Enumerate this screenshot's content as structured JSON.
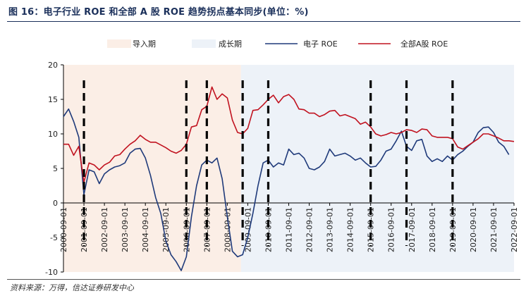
{
  "header": {
    "title": "图 16：电子行业 ROE 和全部 A 股 ROE 趋势拐点基本同步(单位：%)"
  },
  "footer": {
    "source": "资料来源：万得，信达证券研发中心"
  },
  "colors": {
    "electronics": "#1f3a7a",
    "allA": "#c1121f",
    "guide_period": "#fbeee6",
    "growth_period": "#edf2f8",
    "marker": "#000000",
    "title": "#1a2f5a"
  },
  "chart_data": {
    "type": "line",
    "legend": [
      "导入期",
      "成长期",
      "电子 ROE",
      "全部A股 ROE"
    ],
    "ylim": [
      -10,
      20
    ],
    "yticks": [
      -10,
      -5,
      0,
      5,
      10,
      15,
      20
    ],
    "xlim": [
      "2000-09-01",
      "2022-09-01"
    ],
    "xticks": [
      "2000-09-01",
      "2001-09-01",
      "2002-09-01",
      "2003-09-01",
      "2004-09-01",
      "2005-09-01",
      "2006-09-01",
      "2007-09-01",
      "2008-09-01",
      "2009-09-01",
      "2010-09-01",
      "2011-09-01",
      "2012-09-01",
      "2013-09-01",
      "2014-09-01",
      "2015-09-01",
      "2016-09-01",
      "2017-09-01",
      "2018-09-01",
      "2019-09-01",
      "2020-09-01",
      "2021-09-01",
      "2022-09-01"
    ],
    "bands": [
      {
        "name": "导入期",
        "start": "2000-09-01",
        "end": "2009-05-01"
      },
      {
        "name": "成长期",
        "start": "2009-05-01",
        "end": "2022-09-01"
      }
    ],
    "markers": [
      "2001-09-01",
      "2006-09-01",
      "2007-09-01",
      "2009-06-01",
      "2010-09-01",
      "2015-09-01",
      "2017-06-01",
      "2019-09-01"
    ],
    "series": [
      {
        "name": "电子 ROE",
        "points": [
          [
            "2000-09-01",
            12.5
          ],
          [
            "2000-12-01",
            13.6
          ],
          [
            "2001-03-01",
            11.8
          ],
          [
            "2001-06-01",
            9.5
          ],
          [
            "2001-09-01",
            1.2
          ],
          [
            "2001-12-01",
            4.8
          ],
          [
            "2002-03-01",
            4.5
          ],
          [
            "2002-06-01",
            2.8
          ],
          [
            "2002-09-01",
            4.2
          ],
          [
            "2002-12-01",
            4.8
          ],
          [
            "2003-03-01",
            5.2
          ],
          [
            "2003-06-01",
            5.4
          ],
          [
            "2003-09-01",
            5.8
          ],
          [
            "2003-12-01",
            7.2
          ],
          [
            "2004-03-01",
            7.8
          ],
          [
            "2004-06-01",
            7.9
          ],
          [
            "2004-09-01",
            6.5
          ],
          [
            "2004-12-01",
            4.0
          ],
          [
            "2005-03-01",
            0.8
          ],
          [
            "2005-06-01",
            -1.5
          ],
          [
            "2005-09-01",
            -5.5
          ],
          [
            "2005-12-01",
            -7.5
          ],
          [
            "2006-03-01",
            -8.5
          ],
          [
            "2006-06-01",
            -9.8
          ],
          [
            "2006-09-01",
            -7.8
          ],
          [
            "2006-12-01",
            -2.0
          ],
          [
            "2007-03-01",
            2.5
          ],
          [
            "2007-06-01",
            5.5
          ],
          [
            "2007-09-01",
            6.2
          ],
          [
            "2007-12-01",
            5.8
          ],
          [
            "2008-03-01",
            6.5
          ],
          [
            "2008-06-01",
            3.5
          ],
          [
            "2008-09-01",
            -2.0
          ],
          [
            "2008-12-01",
            -7.0
          ],
          [
            "2009-03-01",
            -7.8
          ],
          [
            "2009-06-01",
            -7.5
          ],
          [
            "2009-09-01",
            -5.0
          ],
          [
            "2009-12-01",
            -1.5
          ],
          [
            "2010-03-01",
            2.5
          ],
          [
            "2010-06-01",
            5.8
          ],
          [
            "2010-09-01",
            6.2
          ],
          [
            "2010-12-01",
            5.2
          ],
          [
            "2011-03-01",
            5.8
          ],
          [
            "2011-06-01",
            5.5
          ],
          [
            "2011-09-01",
            7.8
          ],
          [
            "2011-12-01",
            7.0
          ],
          [
            "2012-03-01",
            7.2
          ],
          [
            "2012-06-01",
            6.5
          ],
          [
            "2012-09-01",
            5.0
          ],
          [
            "2012-12-01",
            4.8
          ],
          [
            "2013-03-01",
            5.2
          ],
          [
            "2013-06-01",
            6.0
          ],
          [
            "2013-09-01",
            7.8
          ],
          [
            "2013-12-01",
            6.8
          ],
          [
            "2014-03-01",
            7.0
          ],
          [
            "2014-06-01",
            7.2
          ],
          [
            "2014-09-01",
            6.8
          ],
          [
            "2014-12-01",
            6.2
          ],
          [
            "2015-03-01",
            6.5
          ],
          [
            "2015-06-01",
            5.8
          ],
          [
            "2015-09-01",
            5.2
          ],
          [
            "2015-12-01",
            5.3
          ],
          [
            "2016-03-01",
            6.2
          ],
          [
            "2016-06-01",
            7.5
          ],
          [
            "2016-09-01",
            7.8
          ],
          [
            "2016-12-01",
            9.0
          ],
          [
            "2017-03-01",
            10.4
          ],
          [
            "2017-06-01",
            8.2
          ],
          [
            "2017-09-01",
            7.6
          ],
          [
            "2017-12-01",
            9.0
          ],
          [
            "2018-03-01",
            9.2
          ],
          [
            "2018-06-01",
            6.8
          ],
          [
            "2018-09-01",
            6.0
          ],
          [
            "2018-12-01",
            6.4
          ],
          [
            "2019-03-01",
            6.0
          ],
          [
            "2019-06-01",
            6.8
          ],
          [
            "2019-09-01",
            6.2
          ],
          [
            "2019-12-01",
            7.0
          ],
          [
            "2020-03-01",
            7.5
          ],
          [
            "2020-06-01",
            8.2
          ],
          [
            "2020-09-01",
            8.8
          ],
          [
            "2020-12-01",
            10.2
          ],
          [
            "2021-03-01",
            10.9
          ],
          [
            "2021-06-01",
            11.0
          ],
          [
            "2021-09-01",
            10.2
          ],
          [
            "2021-12-01",
            8.8
          ],
          [
            "2022-03-01",
            8.2
          ],
          [
            "2022-06-01",
            7.0
          ]
        ]
      },
      {
        "name": "全部A股 ROE",
        "points": [
          [
            "2000-09-01",
            8.5
          ],
          [
            "2000-12-01",
            8.5
          ],
          [
            "2001-03-01",
            6.9
          ],
          [
            "2001-06-01",
            8.2
          ],
          [
            "2001-09-01",
            3.0
          ],
          [
            "2001-12-01",
            5.8
          ],
          [
            "2002-03-01",
            5.5
          ],
          [
            "2002-06-01",
            4.8
          ],
          [
            "2002-09-01",
            5.5
          ],
          [
            "2002-12-01",
            5.9
          ],
          [
            "2003-03-01",
            6.8
          ],
          [
            "2003-06-01",
            7.0
          ],
          [
            "2003-09-01",
            7.8
          ],
          [
            "2003-12-01",
            8.5
          ],
          [
            "2004-03-01",
            9.0
          ],
          [
            "2004-06-01",
            9.8
          ],
          [
            "2004-09-01",
            9.2
          ],
          [
            "2004-12-01",
            8.8
          ],
          [
            "2005-03-01",
            8.8
          ],
          [
            "2005-06-01",
            8.4
          ],
          [
            "2005-09-01",
            8.0
          ],
          [
            "2005-12-01",
            7.5
          ],
          [
            "2006-03-01",
            7.2
          ],
          [
            "2006-06-01",
            7.6
          ],
          [
            "2006-09-01",
            8.5
          ],
          [
            "2006-12-01",
            11.0
          ],
          [
            "2007-03-01",
            11.2
          ],
          [
            "2007-06-01",
            13.5
          ],
          [
            "2007-09-01",
            14.0
          ],
          [
            "2007-12-01",
            16.8
          ],
          [
            "2008-03-01",
            15.0
          ],
          [
            "2008-06-01",
            15.8
          ],
          [
            "2008-09-01",
            15.2
          ],
          [
            "2008-12-01",
            12.0
          ],
          [
            "2009-03-01",
            10.2
          ],
          [
            "2009-06-01",
            10.0
          ],
          [
            "2009-09-01",
            10.8
          ],
          [
            "2009-12-01",
            13.4
          ],
          [
            "2010-03-01",
            13.5
          ],
          [
            "2010-06-01",
            14.2
          ],
          [
            "2010-09-01",
            15.0
          ],
          [
            "2010-12-01",
            15.6
          ],
          [
            "2011-03-01",
            14.5
          ],
          [
            "2011-06-01",
            15.4
          ],
          [
            "2011-09-01",
            15.7
          ],
          [
            "2011-12-01",
            15.0
          ],
          [
            "2012-03-01",
            13.6
          ],
          [
            "2012-06-01",
            13.5
          ],
          [
            "2012-09-01",
            13.0
          ],
          [
            "2012-12-01",
            13.0
          ],
          [
            "2013-03-01",
            12.5
          ],
          [
            "2013-06-01",
            12.8
          ],
          [
            "2013-09-01",
            13.3
          ],
          [
            "2013-12-01",
            13.4
          ],
          [
            "2014-03-01",
            12.6
          ],
          [
            "2014-06-01",
            12.8
          ],
          [
            "2014-09-01",
            12.5
          ],
          [
            "2014-12-01",
            12.2
          ],
          [
            "2015-03-01",
            11.4
          ],
          [
            "2015-06-01",
            11.7
          ],
          [
            "2015-09-01",
            11.0
          ],
          [
            "2015-12-01",
            10.0
          ],
          [
            "2016-03-01",
            9.7
          ],
          [
            "2016-06-01",
            9.9
          ],
          [
            "2016-09-01",
            10.2
          ],
          [
            "2016-12-01",
            10.0
          ],
          [
            "2017-03-01",
            10.2
          ],
          [
            "2017-06-01",
            10.6
          ],
          [
            "2017-09-01",
            10.5
          ],
          [
            "2017-12-01",
            10.2
          ],
          [
            "2018-03-01",
            10.7
          ],
          [
            "2018-06-01",
            10.6
          ],
          [
            "2018-09-01",
            9.7
          ],
          [
            "2018-12-01",
            9.5
          ],
          [
            "2019-03-01",
            9.5
          ],
          [
            "2019-06-01",
            9.5
          ],
          [
            "2019-09-01",
            9.3
          ],
          [
            "2019-12-01",
            8.1
          ],
          [
            "2020-03-01",
            7.8
          ],
          [
            "2020-06-01",
            8.3
          ],
          [
            "2020-09-01",
            8.8
          ],
          [
            "2020-12-01",
            9.3
          ],
          [
            "2021-03-01",
            10.0
          ],
          [
            "2021-06-01",
            10.0
          ],
          [
            "2021-09-01",
            9.7
          ],
          [
            "2021-12-01",
            9.4
          ],
          [
            "2022-03-01",
            9.0
          ],
          [
            "2022-06-01",
            9.0
          ],
          [
            "2022-09-01",
            8.9
          ]
        ]
      }
    ]
  }
}
